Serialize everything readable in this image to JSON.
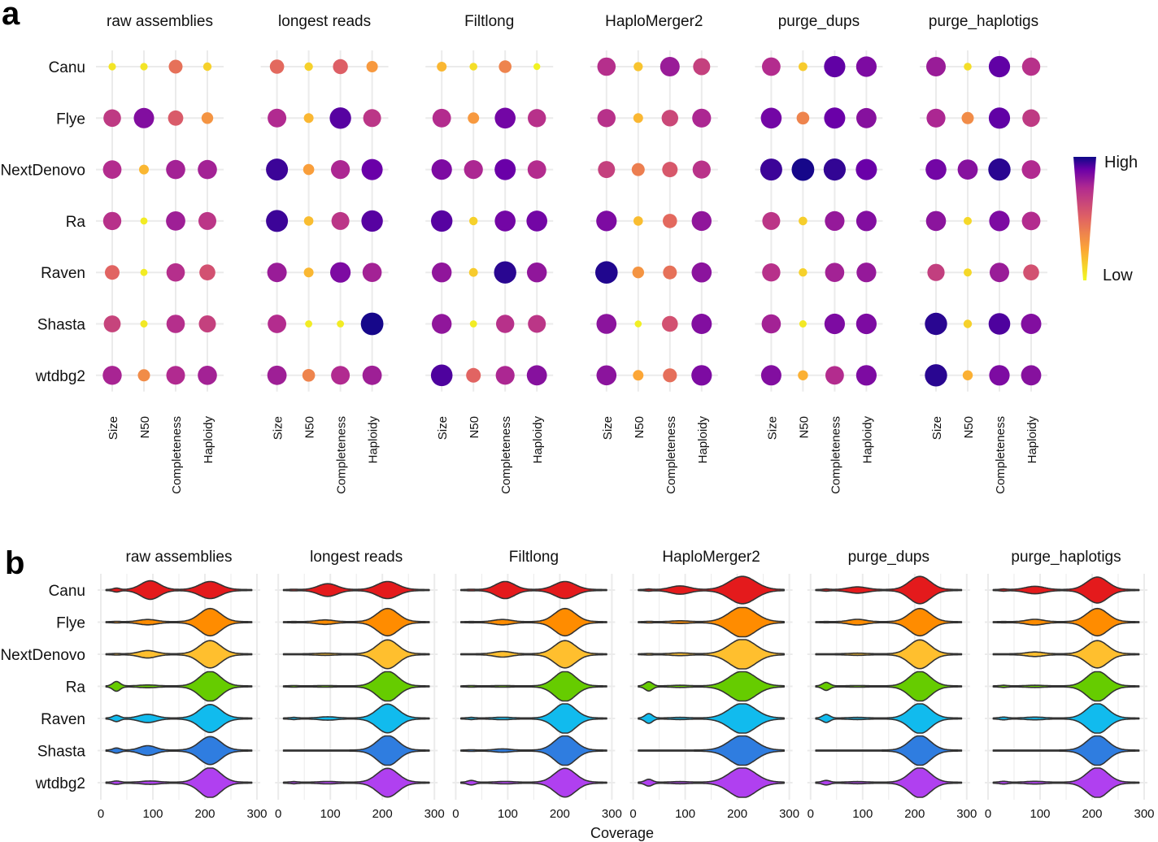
{
  "chart_data": [
    {
      "panel": "a",
      "type": "scatter",
      "facets": [
        "raw assemblies",
        "longest reads",
        "Filtlong",
        "HaploMerger2",
        "purge_dups",
        "purge_haplotigs"
      ],
      "rows": [
        "Canu",
        "Flye",
        "NextDenovo",
        "Ra",
        "Raven",
        "Shasta",
        "wtdbg2"
      ],
      "metrics": [
        "Size",
        "N50",
        "Completeness",
        "Haploidy"
      ],
      "scale": {
        "low_label": "Low",
        "high_label": "High",
        "low_color": "#f0f921",
        "high_color": "#0d0887"
      },
      "values": [
        [
          [
            0.06,
            0.06,
            0.45,
            0.12
          ],
          [
            0.68,
            0.85,
            0.54,
            0.32
          ],
          [
            0.74,
            0.2,
            0.78,
            0.78
          ],
          [
            0.72,
            0.04,
            0.79,
            0.7
          ],
          [
            0.5,
            0.04,
            0.73,
            0.58
          ],
          [
            0.64,
            0.05,
            0.73,
            0.65
          ],
          [
            0.77,
            0.35,
            0.75,
            0.78
          ]
        ],
        [
          [
            0.48,
            0.12,
            0.52,
            0.3
          ],
          [
            0.75,
            0.2,
            0.92,
            0.7
          ],
          [
            0.95,
            0.28,
            0.76,
            0.9
          ],
          [
            0.95,
            0.18,
            0.7,
            0.92
          ],
          [
            0.8,
            0.2,
            0.86,
            0.78
          ],
          [
            0.74,
            0.04,
            0.04,
            0.99
          ],
          [
            0.79,
            0.38,
            0.75,
            0.79
          ]
        ],
        [
          [
            0.2,
            0.08,
            0.38,
            0.02
          ],
          [
            0.74,
            0.3,
            0.88,
            0.72
          ],
          [
            0.86,
            0.76,
            0.9,
            0.74
          ],
          [
            0.92,
            0.12,
            0.88,
            0.88
          ],
          [
            0.82,
            0.14,
            0.97,
            0.82
          ],
          [
            0.82,
            0.04,
            0.72,
            0.7
          ],
          [
            0.93,
            0.5,
            0.76,
            0.84
          ]
        ],
        [
          [
            0.73,
            0.16,
            0.8,
            0.65
          ],
          [
            0.72,
            0.2,
            0.62,
            0.76
          ],
          [
            0.65,
            0.4,
            0.55,
            0.71
          ],
          [
            0.86,
            0.18,
            0.48,
            0.82
          ],
          [
            0.98,
            0.32,
            0.45,
            0.83
          ],
          [
            0.83,
            0.03,
            0.58,
            0.85
          ],
          [
            0.83,
            0.25,
            0.46,
            0.86
          ]
        ],
        [
          [
            0.74,
            0.14,
            0.91,
            0.86
          ],
          [
            0.88,
            0.38,
            0.9,
            0.84
          ],
          [
            0.95,
            0.99,
            0.96,
            0.9
          ],
          [
            0.7,
            0.13,
            0.81,
            0.85
          ],
          [
            0.72,
            0.12,
            0.78,
            0.81
          ],
          [
            0.78,
            0.05,
            0.86,
            0.86
          ],
          [
            0.85,
            0.22,
            0.74,
            0.86
          ]
        ],
        [
          [
            0.8,
            0.08,
            0.91,
            0.72
          ],
          [
            0.76,
            0.35,
            0.91,
            0.68
          ],
          [
            0.88,
            0.84,
            0.97,
            0.75
          ],
          [
            0.83,
            0.1,
            0.86,
            0.74
          ],
          [
            0.66,
            0.1,
            0.8,
            0.58
          ],
          [
            0.97,
            0.12,
            0.93,
            0.85
          ],
          [
            0.97,
            0.22,
            0.86,
            0.84
          ]
        ]
      ]
    },
    {
      "panel": "b",
      "type": "violin",
      "facets": [
        "raw assemblies",
        "longest reads",
        "Filtlong",
        "HaploMerger2",
        "purge_dups",
        "purge_haplotigs"
      ],
      "rows": [
        "Canu",
        "Flye",
        "NextDenovo",
        "Ra",
        "Raven",
        "Shasta",
        "wtdbg2"
      ],
      "colors": [
        "#e41a1c",
        "#ff8c00",
        "#ffbf2e",
        "#66cc00",
        "#11bbee",
        "#2f7de0",
        "#b040f0"
      ],
      "xlabel": "Coverage",
      "xlim": [
        0,
        300
      ],
      "xticks": [
        0,
        100,
        200,
        300
      ],
      "modes": [
        [
          [
            [
              30,
              6,
              0.1
            ],
            [
              95,
              18,
              0.6
            ],
            [
              210,
              20,
              0.55
            ]
          ],
          [
            [
              30,
              6,
              0.02
            ],
            [
              90,
              16,
              0.15
            ],
            [
              210,
              20,
              0.9
            ]
          ],
          [
            [
              30,
              6,
              0.02
            ],
            [
              90,
              16,
              0.22
            ],
            [
              210,
              20,
              0.9
            ]
          ],
          [
            [
              30,
              7,
              0.3
            ],
            [
              90,
              16,
              0.06
            ],
            [
              210,
              20,
              1.0
            ]
          ],
          [
            [
              30,
              7,
              0.18
            ],
            [
              90,
              16,
              0.25
            ],
            [
              210,
              20,
              0.92
            ]
          ],
          [
            [
              30,
              7,
              0.14
            ],
            [
              90,
              15,
              0.3
            ],
            [
              210,
              20,
              0.92
            ]
          ],
          [
            [
              30,
              7,
              0.08
            ],
            [
              95,
              16,
              0.08
            ],
            [
              210,
              20,
              1.0
            ]
          ]
        ],
        [
          [
            [
              30,
              6,
              0.02
            ],
            [
              95,
              18,
              0.4
            ],
            [
              210,
              20,
              0.55
            ]
          ],
          [
            [
              30,
              6,
              0.01
            ],
            [
              90,
              16,
              0.12
            ],
            [
              210,
              20,
              0.9
            ]
          ],
          [
            [
              30,
              6,
              0.0
            ],
            [
              90,
              16,
              0.04
            ],
            [
              210,
              20,
              0.95
            ]
          ],
          [
            [
              30,
              7,
              0.02
            ],
            [
              90,
              16,
              0.02
            ],
            [
              210,
              20,
              1.0
            ]
          ],
          [
            [
              30,
              7,
              0.04
            ],
            [
              95,
              16,
              0.08
            ],
            [
              210,
              20,
              0.95
            ]
          ],
          [
            [
              30,
              7,
              0.0
            ],
            [
              90,
              15,
              0.0
            ],
            [
              210,
              20,
              1.0
            ]
          ],
          [
            [
              30,
              7,
              0.04
            ],
            [
              95,
              16,
              0.05
            ],
            [
              210,
              20,
              0.95
            ]
          ]
        ],
        [
          [
            [
              30,
              6,
              0.02
            ],
            [
              95,
              18,
              0.55
            ],
            [
              210,
              20,
              0.55
            ]
          ],
          [
            [
              30,
              6,
              0.01
            ],
            [
              90,
              16,
              0.15
            ],
            [
              210,
              20,
              0.9
            ]
          ],
          [
            [
              30,
              6,
              0.0
            ],
            [
              90,
              16,
              0.16
            ],
            [
              210,
              20,
              0.9
            ]
          ],
          [
            [
              30,
              7,
              0.02
            ],
            [
              90,
              16,
              0.02
            ],
            [
              210,
              20,
              1.0
            ]
          ],
          [
            [
              30,
              7,
              0.04
            ],
            [
              90,
              16,
              0.05
            ],
            [
              210,
              20,
              1.0
            ]
          ],
          [
            [
              30,
              7,
              0.02
            ],
            [
              90,
              15,
              0.08
            ],
            [
              210,
              20,
              1.0
            ]
          ],
          [
            [
              30,
              7,
              0.12
            ],
            [
              95,
              16,
              0.05
            ],
            [
              210,
              20,
              0.95
            ]
          ]
        ],
        [
          [
            [
              30,
              6,
              0.04
            ],
            [
              90,
              18,
              0.25
            ],
            [
              210,
              25,
              0.9
            ]
          ],
          [
            [
              30,
              6,
              0.02
            ],
            [
              90,
              16,
              0.06
            ],
            [
              210,
              25,
              1.0
            ]
          ],
          [
            [
              30,
              6,
              0.02
            ],
            [
              90,
              16,
              0.06
            ],
            [
              210,
              25,
              1.0
            ]
          ],
          [
            [
              30,
              7,
              0.28
            ],
            [
              90,
              16,
              0.04
            ],
            [
              210,
              25,
              1.0
            ]
          ],
          [
            [
              30,
              7,
              0.3
            ],
            [
              90,
              16,
              0.04
            ],
            [
              210,
              25,
              1.0
            ]
          ],
          [
            [
              30,
              7,
              0.0
            ],
            [
              90,
              15,
              0.0
            ],
            [
              210,
              25,
              1.0
            ]
          ],
          [
            [
              30,
              7,
              0.2
            ],
            [
              90,
              16,
              0.04
            ],
            [
              210,
              25,
              1.0
            ]
          ]
        ],
        [
          [
            [
              30,
              6,
              0.04
            ],
            [
              90,
              18,
              0.18
            ],
            [
              210,
              20,
              0.9
            ]
          ],
          [
            [
              30,
              6,
              0.01
            ],
            [
              90,
              16,
              0.16
            ],
            [
              210,
              20,
              0.9
            ]
          ],
          [
            [
              30,
              6,
              0.0
            ],
            [
              90,
              16,
              0.04
            ],
            [
              210,
              20,
              0.95
            ]
          ],
          [
            [
              30,
              7,
              0.24
            ],
            [
              90,
              16,
              0.02
            ],
            [
              210,
              20,
              1.0
            ]
          ],
          [
            [
              30,
              7,
              0.24
            ],
            [
              90,
              16,
              0.04
            ],
            [
              210,
              20,
              1.0
            ]
          ],
          [
            [
              30,
              7,
              0.0
            ],
            [
              90,
              15,
              0.0
            ],
            [
              210,
              20,
              1.0
            ]
          ],
          [
            [
              30,
              7,
              0.12
            ],
            [
              90,
              16,
              0.04
            ],
            [
              210,
              20,
              1.0
            ]
          ]
        ],
        [
          [
            [
              30,
              6,
              0.04
            ],
            [
              90,
              18,
              0.22
            ],
            [
              210,
              20,
              0.85
            ]
          ],
          [
            [
              30,
              6,
              0.01
            ],
            [
              90,
              16,
              0.16
            ],
            [
              210,
              20,
              0.9
            ]
          ],
          [
            [
              30,
              6,
              0.0
            ],
            [
              90,
              16,
              0.12
            ],
            [
              210,
              20,
              0.9
            ]
          ],
          [
            [
              30,
              7,
              0.04
            ],
            [
              90,
              16,
              0.04
            ],
            [
              210,
              20,
              1.0
            ]
          ],
          [
            [
              30,
              7,
              0.06
            ],
            [
              90,
              16,
              0.06
            ],
            [
              210,
              20,
              1.0
            ]
          ],
          [
            [
              30,
              7,
              0.0
            ],
            [
              90,
              15,
              0.0
            ],
            [
              210,
              20,
              1.0
            ]
          ],
          [
            [
              30,
              7,
              0.06
            ],
            [
              90,
              16,
              0.06
            ],
            [
              210,
              20,
              1.0
            ]
          ]
        ]
      ]
    }
  ]
}
